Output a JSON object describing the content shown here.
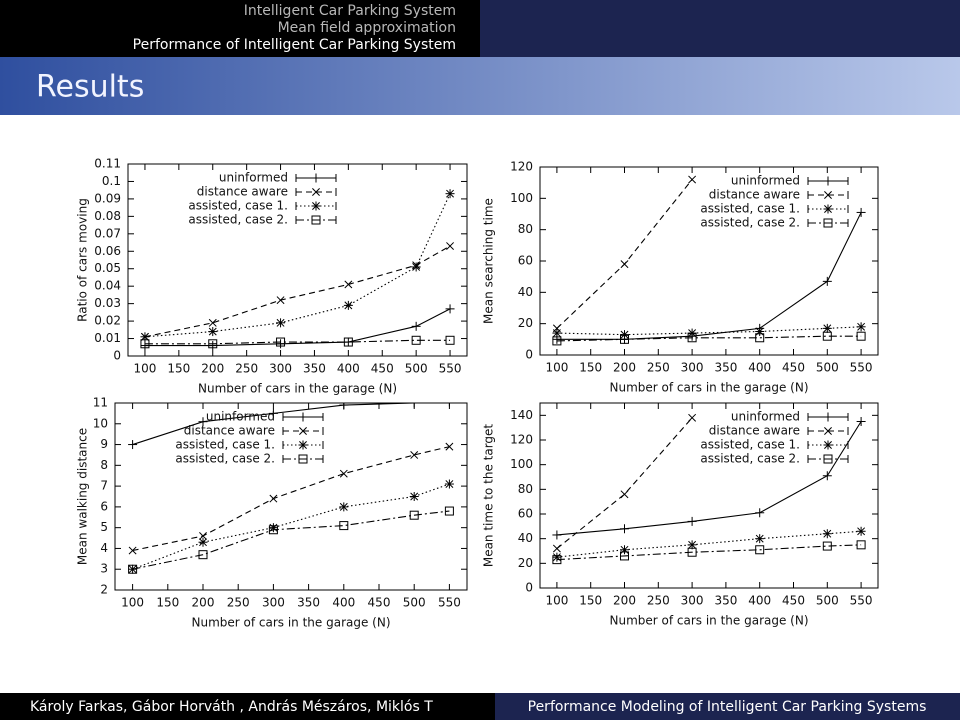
{
  "header": {
    "lines": [
      "Intelligent Car Parking System",
      "Mean field approximation",
      "Performance of Intelligent Car Parking System"
    ]
  },
  "frame_title": "Results",
  "footer": {
    "authors": "Károly Farkas, Gábor Horváth , András Mészáros, Miklós T",
    "title": "Performance Modeling of Intelligent Car Parking Systems"
  },
  "chart_data": [
    {
      "type": "line",
      "ylabel": "Ratio of cars moving",
      "xlabel": "Number of cars in the garage (N)",
      "x": [
        100,
        200,
        300,
        400,
        500,
        550
      ],
      "xlim": [
        75,
        575
      ],
      "xticks": [
        100,
        150,
        200,
        250,
        300,
        350,
        400,
        450,
        500,
        550
      ],
      "ylim": [
        0,
        0.11
      ],
      "yticks": [
        0,
        0.01,
        0.02,
        0.03,
        0.04,
        0.05,
        0.06,
        0.07,
        0.08,
        0.09,
        0.1,
        0.11
      ],
      "legend": "upper left",
      "series": [
        {
          "name": "uninformed",
          "color": "#000000",
          "values": [
            0.006,
            0.006,
            0.007,
            0.008,
            0.017,
            0.027
          ]
        },
        {
          "name": "distance aware",
          "color": "#000000",
          "values": [
            0.011,
            0.019,
            0.032,
            0.041,
            0.052,
            0.063
          ]
        },
        {
          "name": "assisted, case 1.",
          "color": "#000000",
          "values": [
            0.011,
            0.014,
            0.019,
            0.029,
            0.051,
            0.093
          ]
        },
        {
          "name": "assisted, case 2.",
          "color": "#000000",
          "values": [
            0.007,
            0.007,
            0.008,
            0.008,
            0.009,
            0.009
          ]
        }
      ]
    },
    {
      "type": "line",
      "ylabel": "Mean searching time",
      "xlabel": "Number of cars in the garage (N)",
      "x": [
        100,
        200,
        300,
        400,
        500,
        550
      ],
      "xlim": [
        75,
        575
      ],
      "xticks": [
        100,
        150,
        200,
        250,
        300,
        350,
        400,
        450,
        500,
        550
      ],
      "ylim": [
        0,
        120
      ],
      "yticks": [
        0,
        20,
        40,
        60,
        80,
        100,
        120
      ],
      "legend": "upper right",
      "series": [
        {
          "name": "uninformed",
          "color": "#000000",
          "values": [
            10,
            10,
            12,
            17,
            47,
            91
          ]
        },
        {
          "name": "distance aware",
          "color": "#000000",
          "values": [
            17,
            58,
            112,
            null,
            null,
            null
          ]
        },
        {
          "name": "assisted, case 1.",
          "color": "#000000",
          "values": [
            14,
            13,
            14,
            15,
            17,
            18
          ]
        },
        {
          "name": "assisted, case 2.",
          "color": "#000000",
          "values": [
            9,
            10,
            11,
            11,
            12,
            12
          ]
        }
      ]
    },
    {
      "type": "line",
      "ylabel": "Mean walking distance",
      "xlabel": "Number of cars in the garage (N)",
      "x": [
        100,
        200,
        300,
        400,
        500,
        550
      ],
      "xlim": [
        75,
        575
      ],
      "xticks": [
        100,
        150,
        200,
        250,
        300,
        350,
        400,
        450,
        500,
        550
      ],
      "ylim": [
        2,
        11
      ],
      "yticks": [
        2,
        3,
        4,
        5,
        6,
        7,
        8,
        9,
        10,
        11
      ],
      "legend": "upper left",
      "series": [
        {
          "name": "uninformed",
          "color": "#000000",
          "values": [
            9,
            10.1,
            10.5,
            10.9,
            11,
            11.05
          ]
        },
        {
          "name": "distance aware",
          "color": "#000000",
          "values": [
            3.9,
            4.6,
            6.4,
            7.6,
            8.5,
            8.9
          ]
        },
        {
          "name": "assisted, case 1.",
          "color": "#000000",
          "values": [
            3,
            4.3,
            5,
            6,
            6.5,
            7.1
          ]
        },
        {
          "name": "assisted, case 2.",
          "color": "#000000",
          "values": [
            3,
            3.7,
            4.9,
            5.1,
            5.6,
            5.8
          ]
        }
      ]
    },
    {
      "type": "line",
      "ylabel": "Mean time to the target",
      "xlabel": "Number of cars in the garage (N)",
      "x": [
        100,
        200,
        300,
        400,
        500,
        550
      ],
      "xlim": [
        75,
        575
      ],
      "xticks": [
        100,
        150,
        200,
        250,
        300,
        350,
        400,
        450,
        500,
        550
      ],
      "ylim": [
        0,
        150
      ],
      "yticks": [
        0,
        20,
        40,
        60,
        80,
        100,
        120,
        140
      ],
      "legend": "upper right",
      "series": [
        {
          "name": "uninformed",
          "color": "#000000",
          "values": [
            43,
            48,
            54,
            61,
            91,
            135
          ]
        },
        {
          "name": "distance aware",
          "color": "#000000",
          "values": [
            32,
            76,
            138,
            null,
            null,
            null
          ]
        },
        {
          "name": "assisted, case 1.",
          "color": "#000000",
          "values": [
            25,
            31,
            35,
            40,
            44,
            46
          ]
        },
        {
          "name": "assisted, case 2.",
          "color": "#000000",
          "values": [
            23,
            26,
            29,
            31,
            34,
            35
          ]
        }
      ]
    }
  ]
}
